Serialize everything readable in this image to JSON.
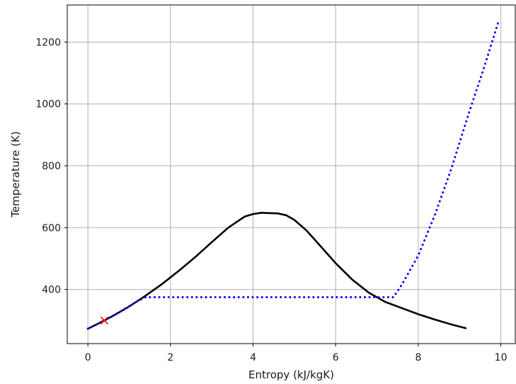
{
  "chart_data": {
    "type": "line",
    "title": "",
    "xlabel": "Entropy (kJ/kgK)",
    "ylabel": "Temperature (K)",
    "xlim": [
      -0.5,
      10.35
    ],
    "ylim": [
      225,
      1320
    ],
    "xticks": [
      0,
      2,
      4,
      6,
      8,
      10
    ],
    "yticks": [
      400,
      600,
      800,
      1000,
      1200
    ],
    "grid": true,
    "series": [
      {
        "color": "#000000",
        "style": "solid",
        "x": [
          0.0,
          0.3,
          0.6,
          1.0,
          1.4,
          1.8,
          2.2,
          2.6,
          3.0,
          3.4,
          3.8,
          4.0,
          4.2,
          4.4,
          4.6,
          4.8,
          5.0,
          5.3,
          5.6,
          6.0,
          6.4,
          6.8,
          7.2,
          7.6,
          8.0,
          8.4,
          8.8,
          9.15
        ],
        "y": [
          273,
          293,
          314,
          345,
          380,
          418,
          460,
          505,
          553,
          600,
          636,
          644,
          648,
          647,
          646,
          640,
          625,
          590,
          545,
          485,
          432,
          390,
          360,
          340,
          320,
          303,
          287,
          275
        ]
      },
      {
        "color": "#0000ff",
        "style": "dotted",
        "x": [
          0.0,
          0.4,
          0.8,
          1.2,
          1.4,
          2.0,
          3.0,
          4.0,
          5.0,
          6.0,
          7.0,
          7.4,
          7.6,
          8.0,
          8.4,
          8.8,
          9.2,
          9.6,
          9.95
        ],
        "y": [
          273,
          300,
          330,
          362,
          375,
          375,
          375,
          375,
          375,
          375,
          375,
          375,
          415,
          510,
          640,
          790,
          960,
          1120,
          1270
        ]
      }
    ],
    "markers": [
      {
        "x": 0.4,
        "y": 300,
        "symbol": "x",
        "color": "#ff0000"
      }
    ]
  }
}
